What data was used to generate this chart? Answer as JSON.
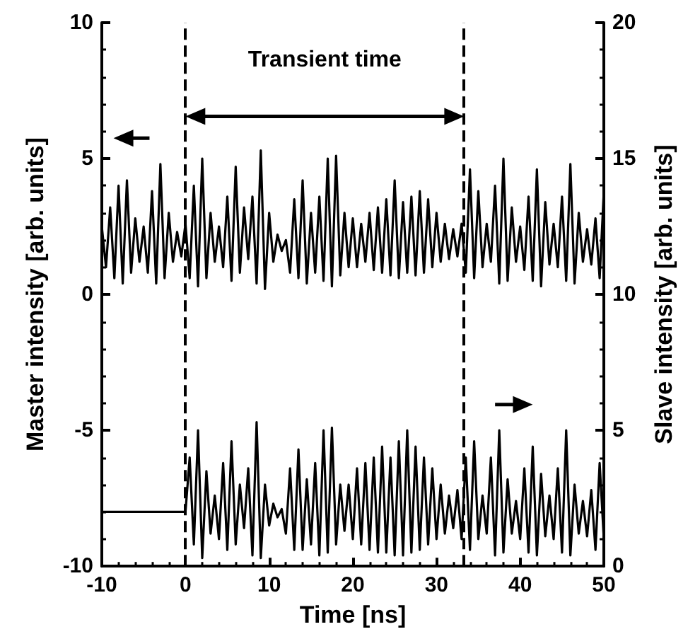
{
  "chart_data": {
    "type": "line",
    "xlabel": "Time [ns]",
    "ylabel": "Master intensity [arb. units]",
    "y2label": "Slave intensity [arb. units]",
    "annotations": [
      "Transient time"
    ],
    "xlim": [
      -10,
      50
    ],
    "xticks": [
      -10,
      0,
      10,
      20,
      30,
      40,
      50
    ],
    "ylim": [
      -10,
      10
    ],
    "yticks": [
      -10,
      -5,
      0,
      5,
      10
    ],
    "y2lim": [
      0,
      20
    ],
    "y2ticks": [
      0,
      5,
      10,
      15,
      20
    ],
    "grid": false,
    "marker": "none",
    "line_style": "solid",
    "ref_lines": [
      {
        "axis": "x",
        "value": 0,
        "line_style": "dashed",
        "color": "#000000"
      },
      {
        "axis": "x",
        "value": 33.3,
        "line_style": "dashed",
        "color": "#000000"
      }
    ],
    "series": [
      {
        "color": "#000000",
        "x": [
          -10,
          -9.5,
          -9,
          -8.5,
          -8,
          -7.5,
          -7,
          -6.5,
          -6,
          -5.5,
          -5,
          -4.5,
          -4,
          -3.5,
          -3,
          -2.5,
          -2,
          -1.5,
          -1,
          -0.5,
          0,
          0.5,
          1,
          1.5,
          2,
          2.5,
          3,
          3.5,
          4,
          4.5,
          5,
          5.5,
          6,
          6.5,
          7,
          7.5,
          8,
          8.5,
          9,
          9.5,
          10,
          10.5,
          11,
          11.5,
          12,
          12.5,
          13,
          13.5,
          14,
          14.5,
          15,
          15.5,
          16,
          16.5,
          17,
          17.5,
          18,
          18.5,
          19,
          19.5,
          20,
          20.5,
          21,
          21.5,
          22,
          22.5,
          23,
          23.5,
          24,
          24.5,
          25,
          25.5,
          26,
          26.5,
          27,
          27.5,
          28,
          28.5,
          29,
          29.5,
          30,
          30.5,
          31,
          31.5,
          32,
          32.5,
          33,
          33.5,
          34,
          34.5,
          35,
          35.5,
          36,
          36.5,
          37,
          37.5,
          38,
          38.5,
          39,
          39.5,
          40,
          40.5,
          41,
          41.5,
          42,
          42.5,
          43,
          43.5,
          44,
          44.5,
          45,
          45.5,
          46,
          46.5,
          47,
          47.5,
          48,
          48.5,
          49,
          49.5,
          50
        ],
        "values": [
          2.5,
          1.0,
          3.2,
          0.6,
          4.0,
          0.4,
          4.2,
          0.8,
          2.8,
          1.2,
          2.5,
          0.8,
          3.8,
          0.4,
          4.8,
          0.6,
          3.0,
          1.2,
          2.3,
          1.4,
          2.6,
          0.6,
          4.0,
          0.3,
          5.0,
          0.6,
          3.0,
          1.2,
          2.5,
          1.0,
          3.6,
          0.5,
          4.7,
          0.8,
          3.2,
          1.3,
          3.6,
          0.4,
          5.3,
          0.2,
          3.0,
          1.2,
          2.2,
          1.6,
          2.0,
          0.8,
          3.5,
          0.6,
          4.2,
          0.4,
          3.0,
          0.8,
          3.6,
          0.5,
          5.0,
          0.3,
          5.1,
          0.7,
          3.0,
          1.0,
          2.8,
          1.0,
          2.6,
          1.2,
          3.0,
          0.9,
          3.2,
          0.8,
          3.5,
          0.7,
          4.2,
          0.6,
          3.4,
          0.8,
          3.6,
          0.7,
          3.8,
          0.8,
          3.5,
          1.0,
          3.0,
          1.2,
          2.6,
          1.3,
          2.4,
          1.4,
          2.6,
          0.8,
          4.6,
          0.6,
          3.8,
          1.0,
          2.6,
          1.2,
          4.0,
          0.4,
          5.0,
          0.5,
          3.2,
          1.2,
          2.5,
          0.9,
          3.6,
          0.5,
          4.6,
          0.3,
          3.4,
          1.1,
          2.6,
          1.0,
          3.6,
          0.5,
          4.8,
          0.4,
          3.0,
          1.2,
          2.4,
          1.1,
          2.8,
          0.6,
          3.8
        ]
      },
      {
        "color": "#000000",
        "axis": "y2",
        "x": [
          -10,
          0,
          0.5,
          1,
          1.5,
          2,
          2.5,
          3,
          3.5,
          4,
          4.5,
          5,
          5.5,
          6,
          6.5,
          7,
          7.5,
          8,
          8.5,
          9,
          9.5,
          10,
          10.5,
          11,
          11.5,
          12,
          12.5,
          13,
          13.5,
          14,
          14.5,
          15,
          15.5,
          16,
          16.5,
          17,
          17.5,
          18,
          18.5,
          19,
          19.5,
          20,
          20.5,
          21,
          21.5,
          22,
          22.5,
          23,
          23.5,
          24,
          24.5,
          25,
          25.5,
          26,
          26.5,
          27,
          27.5,
          28,
          28.5,
          29,
          29.5,
          30,
          30.5,
          31,
          31.5,
          32,
          32.5,
          33,
          33.5,
          34,
          34.5,
          35,
          35.5,
          36,
          36.5,
          37,
          37.5,
          38,
          38.5,
          39,
          39.5,
          40,
          40.5,
          41,
          41.5,
          42,
          42.5,
          43,
          43.5,
          44,
          44.5,
          45,
          45.5,
          46,
          46.5,
          47,
          47.5,
          48,
          48.5,
          49,
          49.5,
          50
        ],
        "values": [
          2.0,
          2.0,
          4.0,
          0.8,
          5.0,
          0.3,
          3.5,
          1.2,
          2.6,
          1.0,
          3.8,
          0.6,
          4.6,
          0.8,
          3.0,
          1.4,
          3.6,
          0.4,
          5.3,
          0.3,
          3.0,
          1.5,
          2.3,
          1.8,
          2.1,
          1.2,
          3.6,
          0.6,
          4.3,
          0.6,
          3.2,
          0.8,
          3.8,
          0.4,
          5.0,
          0.5,
          5.1,
          0.8,
          3.0,
          1.3,
          3.0,
          1.0,
          3.6,
          0.8,
          3.8,
          0.6,
          4.0,
          0.5,
          4.4,
          0.5,
          4.0,
          0.4,
          4.6,
          0.4,
          5.0,
          0.5,
          4.4,
          0.6,
          4.0,
          0.8,
          3.6,
          1.0,
          3.0,
          1.2,
          2.6,
          1.4,
          2.8,
          1.0,
          4.0,
          0.6,
          4.6,
          1.0,
          2.6,
          1.2,
          4.0,
          0.4,
          5.0,
          0.5,
          3.2,
          1.2,
          2.4,
          1.0,
          3.6,
          0.5,
          4.4,
          0.4,
          3.4,
          1.1,
          2.6,
          1.0,
          3.6,
          0.5,
          5.0,
          0.4,
          3.0,
          1.2,
          2.4,
          1.1,
          2.8,
          0.6,
          3.8,
          1.0
        ]
      }
    ]
  }
}
